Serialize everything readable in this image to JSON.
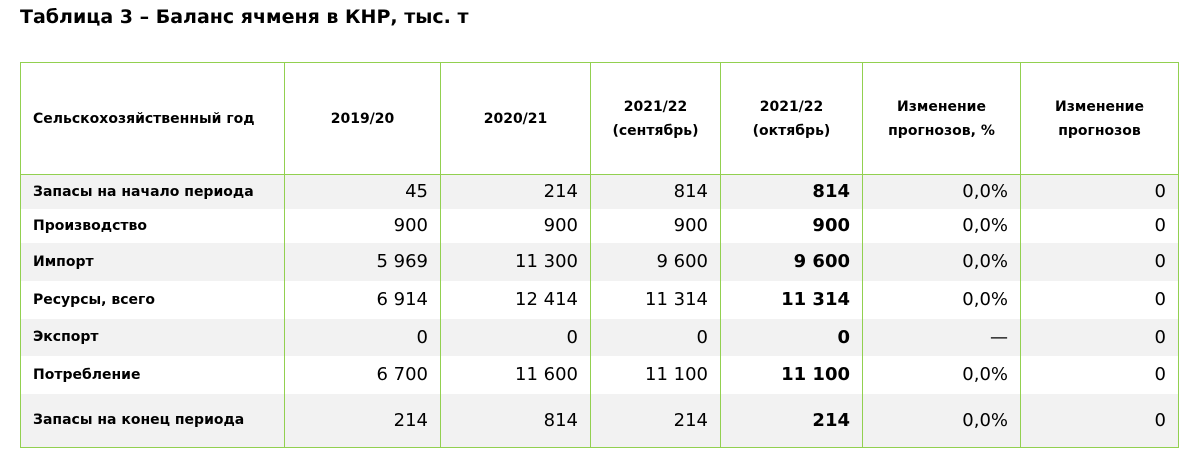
{
  "title": "Таблица 3 – Баланс ячменя в КНР, тыс. т",
  "table": {
    "header": [
      "Сельскохозяйственный год",
      "2019/20",
      "2020/21",
      "2021/22 (сентябрь)",
      "2021/22 (октябрь)",
      "Изменение прогнозов, %",
      "Изменение прогнозов"
    ],
    "rows": [
      [
        "Запасы на начало периода",
        "45",
        "214",
        "814",
        "814",
        "0,0%",
        "0"
      ],
      [
        "Производство",
        "900",
        "900",
        "900",
        "900",
        "0,0%",
        "0"
      ],
      [
        "Импорт",
        "5 969",
        "11 300",
        "9 600",
        "9 600",
        "0,0%",
        "0"
      ],
      [
        "Ресурсы, всего",
        "6 914",
        "12 414",
        "11 314",
        "11 314",
        "0,0%",
        "0"
      ],
      [
        "Экспорт",
        "0",
        "0",
        "0",
        "0",
        "—",
        "0"
      ],
      [
        "Потребление",
        "6 700",
        "11 600",
        "11 100",
        "11 100",
        "0,0%",
        "0"
      ],
      [
        "Запасы на конец периода",
        "214",
        "814",
        "214",
        "214",
        "0,0%",
        "0"
      ]
    ]
  }
}
